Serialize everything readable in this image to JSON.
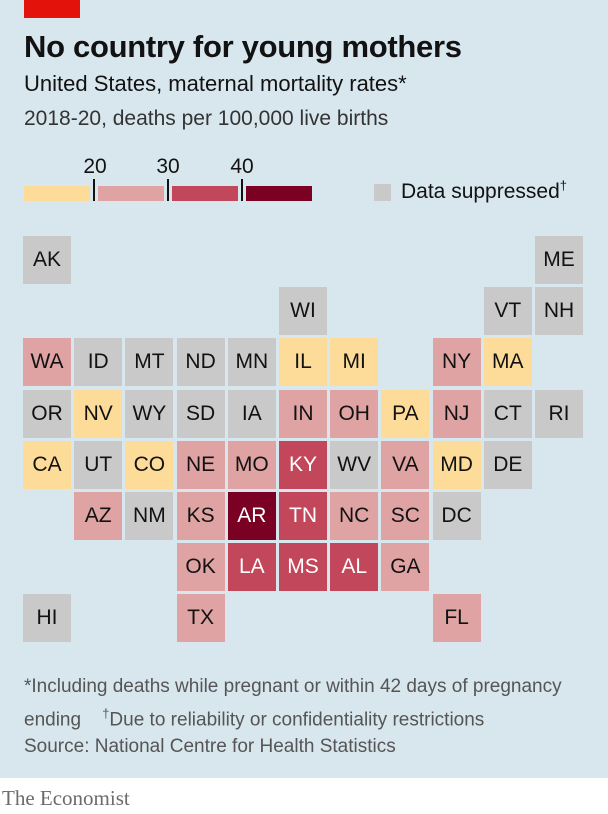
{
  "header": {
    "title": "No country for young mothers",
    "subtitle": "United States, maternal mortality rates*",
    "units": "2018-20, deaths per 100,000 live births",
    "accent_color": "#e3120b"
  },
  "legend": {
    "ticks": [
      "20",
      "30",
      "40"
    ],
    "bins": [
      {
        "range": "<20",
        "color": "#fddb99"
      },
      {
        "range": "20-30",
        "color": "#e0a3a3"
      },
      {
        "range": "30-40",
        "color": "#c2475a"
      },
      {
        "range": "40+",
        "color": "#7a0024"
      }
    ],
    "suppressed_label": "Data suppressed",
    "suppressed_marker": "†",
    "suppressed_color": "#c9c9c9"
  },
  "map_data": {
    "type": "tile-grid",
    "states": [
      {
        "code": "AK",
        "bin": "suppressed",
        "col": 0,
        "row": 0
      },
      {
        "code": "ME",
        "bin": "suppressed",
        "col": 10,
        "row": 0
      },
      {
        "code": "WI",
        "bin": "suppressed",
        "col": 5,
        "row": 1
      },
      {
        "code": "VT",
        "bin": "suppressed",
        "col": 9,
        "row": 1
      },
      {
        "code": "NH",
        "bin": "suppressed",
        "col": 10,
        "row": 1
      },
      {
        "code": "WA",
        "bin": "20-30",
        "col": 0,
        "row": 2
      },
      {
        "code": "ID",
        "bin": "suppressed",
        "col": 1,
        "row": 2
      },
      {
        "code": "MT",
        "bin": "suppressed",
        "col": 2,
        "row": 2
      },
      {
        "code": "ND",
        "bin": "suppressed",
        "col": 3,
        "row": 2
      },
      {
        "code": "MN",
        "bin": "suppressed",
        "col": 4,
        "row": 2
      },
      {
        "code": "IL",
        "bin": "<20",
        "col": 5,
        "row": 2
      },
      {
        "code": "MI",
        "bin": "<20",
        "col": 6,
        "row": 2
      },
      {
        "code": "NY",
        "bin": "20-30",
        "col": 8,
        "row": 2
      },
      {
        "code": "MA",
        "bin": "<20",
        "col": 9,
        "row": 2
      },
      {
        "code": "OR",
        "bin": "suppressed",
        "col": 0,
        "row": 3
      },
      {
        "code": "NV",
        "bin": "<20",
        "col": 1,
        "row": 3
      },
      {
        "code": "WY",
        "bin": "suppressed",
        "col": 2,
        "row": 3
      },
      {
        "code": "SD",
        "bin": "suppressed",
        "col": 3,
        "row": 3
      },
      {
        "code": "IA",
        "bin": "suppressed",
        "col": 4,
        "row": 3
      },
      {
        "code": "IN",
        "bin": "20-30",
        "col": 5,
        "row": 3
      },
      {
        "code": "OH",
        "bin": "20-30",
        "col": 6,
        "row": 3
      },
      {
        "code": "PA",
        "bin": "<20",
        "col": 7,
        "row": 3
      },
      {
        "code": "NJ",
        "bin": "20-30",
        "col": 8,
        "row": 3
      },
      {
        "code": "CT",
        "bin": "suppressed",
        "col": 9,
        "row": 3
      },
      {
        "code": "RI",
        "bin": "suppressed",
        "col": 10,
        "row": 3
      },
      {
        "code": "CA",
        "bin": "<20",
        "col": 0,
        "row": 4
      },
      {
        "code": "UT",
        "bin": "suppressed",
        "col": 1,
        "row": 4
      },
      {
        "code": "CO",
        "bin": "<20",
        "col": 2,
        "row": 4
      },
      {
        "code": "NE",
        "bin": "20-30",
        "col": 3,
        "row": 4
      },
      {
        "code": "MO",
        "bin": "20-30",
        "col": 4,
        "row": 4
      },
      {
        "code": "KY",
        "bin": "30-40",
        "col": 5,
        "row": 4
      },
      {
        "code": "WV",
        "bin": "suppressed",
        "col": 6,
        "row": 4
      },
      {
        "code": "VA",
        "bin": "20-30",
        "col": 7,
        "row": 4
      },
      {
        "code": "MD",
        "bin": "<20",
        "col": 8,
        "row": 4
      },
      {
        "code": "DE",
        "bin": "suppressed",
        "col": 9,
        "row": 4
      },
      {
        "code": "AZ",
        "bin": "20-30",
        "col": 1,
        "row": 5
      },
      {
        "code": "NM",
        "bin": "suppressed",
        "col": 2,
        "row": 5
      },
      {
        "code": "KS",
        "bin": "20-30",
        "col": 3,
        "row": 5
      },
      {
        "code": "AR",
        "bin": "40+",
        "col": 4,
        "row": 5
      },
      {
        "code": "TN",
        "bin": "30-40",
        "col": 5,
        "row": 5
      },
      {
        "code": "NC",
        "bin": "20-30",
        "col": 6,
        "row": 5
      },
      {
        "code": "SC",
        "bin": "20-30",
        "col": 7,
        "row": 5
      },
      {
        "code": "DC",
        "bin": "suppressed",
        "col": 8,
        "row": 5
      },
      {
        "code": "OK",
        "bin": "20-30",
        "col": 3,
        "row": 6
      },
      {
        "code": "LA",
        "bin": "30-40",
        "col": 4,
        "row": 6
      },
      {
        "code": "MS",
        "bin": "30-40",
        "col": 5,
        "row": 6
      },
      {
        "code": "AL",
        "bin": "30-40",
        "col": 6,
        "row": 6
      },
      {
        "code": "GA",
        "bin": "20-30",
        "col": 7,
        "row": 6
      },
      {
        "code": "HI",
        "bin": "suppressed",
        "col": 0,
        "row": 7
      },
      {
        "code": "TX",
        "bin": "20-30",
        "col": 3,
        "row": 7
      },
      {
        "code": "FL",
        "bin": "20-30",
        "col": 8,
        "row": 7
      }
    ]
  },
  "notes": {
    "line1": "*Including deaths while pregnant or within 42 days of pregnancy",
    "line2_a": "ending",
    "line2_marker": "†",
    "line2_b": "Due to reliability or confidentiality restrictions",
    "source": "Source: National Centre for Health Statistics"
  },
  "footer": {
    "brand": "The Economist"
  }
}
